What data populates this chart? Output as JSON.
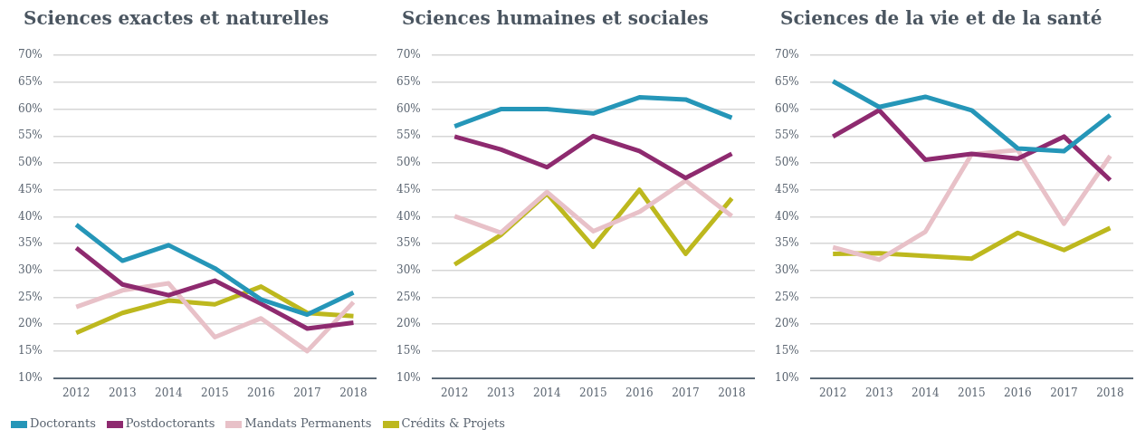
{
  "chart_data": [
    {
      "type": "line",
      "title": "Sciences exactes et naturelles",
      "categories": [
        "2012",
        "2013",
        "2014",
        "2015",
        "2016",
        "2017",
        "2018"
      ],
      "ylim": [
        10,
        70
      ],
      "yticks": [
        {
          "value": 10,
          "label": "10%"
        },
        {
          "value": 15,
          "label": "15%"
        },
        {
          "value": 20,
          "label": "20%"
        },
        {
          "value": 25,
          "label": "25%"
        },
        {
          "value": 30,
          "label": "30%"
        },
        {
          "value": 35,
          "label": "35%"
        },
        {
          "value": 40,
          "label": "40%"
        },
        {
          "value": 45,
          "label": "45%"
        },
        {
          "value": 50,
          "label": "50%"
        },
        {
          "value": 55,
          "label": "55%"
        },
        {
          "value": 60,
          "label": "60%"
        },
        {
          "value": 65,
          "label": "65%"
        },
        {
          "value": 70,
          "label": "70%"
        }
      ],
      "grid": "y",
      "legend": "bottom",
      "marker": "none",
      "series": [
        {
          "name": "Doctorants",
          "color": "#2596b8",
          "values": [
            38.5,
            31.8,
            34.7,
            30.4,
            24.6,
            21.8,
            25.9
          ]
        },
        {
          "name": "Postdoctorants",
          "color": "#8e2a6f",
          "values": [
            34.2,
            27.4,
            25.4,
            28.1,
            23.8,
            19.2,
            20.3
          ]
        },
        {
          "name": "Mandats Permanents",
          "color": "#e8c1c8",
          "values": [
            23.2,
            26.3,
            27.6,
            17.6,
            21.1,
            15.0,
            24.1
          ]
        },
        {
          "name": "Crédits & Projets",
          "color": "#bdb81e",
          "values": [
            18.4,
            22.1,
            24.4,
            23.7,
            27.0,
            22.1,
            21.5
          ]
        }
      ]
    },
    {
      "type": "line",
      "title": "Sciences humaines et sociales",
      "categories": [
        "2012",
        "2013",
        "2014",
        "2015",
        "2016",
        "2017",
        "2018"
      ],
      "ylim": [
        10,
        70
      ],
      "yticks": [
        {
          "value": 10,
          "label": "10%"
        },
        {
          "value": 15,
          "label": "15%"
        },
        {
          "value": 20,
          "label": "20%"
        },
        {
          "value": 25,
          "label": "25%"
        },
        {
          "value": 30,
          "label": "30%"
        },
        {
          "value": 35,
          "label": "35%"
        },
        {
          "value": 40,
          "label": "40%"
        },
        {
          "value": 45,
          "label": "45%"
        },
        {
          "value": 50,
          "label": "50%"
        },
        {
          "value": 55,
          "label": "55%"
        },
        {
          "value": 60,
          "label": "60%"
        },
        {
          "value": 65,
          "label": "65%"
        },
        {
          "value": 70,
          "label": "70%"
        }
      ],
      "grid": "y",
      "marker": "none",
      "series": [
        {
          "color": "#2596b8",
          "values": [
            56.8,
            60.0,
            60.0,
            59.2,
            62.2,
            61.8,
            58.4
          ]
        },
        {
          "color": "#8e2a6f",
          "values": [
            54.9,
            52.5,
            49.2,
            55.0,
            52.2,
            47.2,
            51.7
          ]
        },
        {
          "color": "#e8c1c8",
          "values": [
            40.1,
            37.0,
            44.6,
            37.3,
            40.9,
            46.7,
            40.1
          ]
        },
        {
          "color": "#bdb81e",
          "values": [
            31.1,
            36.6,
            44.3,
            34.4,
            45.0,
            33.1,
            43.4
          ]
        }
      ]
    },
    {
      "type": "line",
      "title": "Sciences de la vie et de la santé",
      "categories": [
        "2012",
        "2013",
        "2014",
        "2015",
        "2016",
        "2017",
        "2018"
      ],
      "ylim": [
        10,
        70
      ],
      "yticks": [
        {
          "value": 10,
          "label": "10%"
        },
        {
          "value": 15,
          "label": "15%"
        },
        {
          "value": 20,
          "label": "20%"
        },
        {
          "value": 25,
          "label": "25%"
        },
        {
          "value": 30,
          "label": "30%"
        },
        {
          "value": 35,
          "label": "35%"
        },
        {
          "value": 40,
          "label": "40%"
        },
        {
          "value": 45,
          "label": "45%"
        },
        {
          "value": 50,
          "label": "50%"
        },
        {
          "value": 55,
          "label": "55%"
        },
        {
          "value": 60,
          "label": "60%"
        },
        {
          "value": 65,
          "label": "65%"
        },
        {
          "value": 70,
          "label": "70%"
        }
      ],
      "grid": "y",
      "marker": "none",
      "series": [
        {
          "color": "#2596b8",
          "values": [
            65.2,
            60.4,
            62.3,
            59.8,
            52.7,
            52.2,
            58.9
          ]
        },
        {
          "color": "#8e2a6f",
          "values": [
            54.9,
            59.8,
            50.6,
            51.7,
            50.8,
            54.9,
            46.8
          ]
        },
        {
          "color": "#e8c1c8",
          "values": [
            34.3,
            32.0,
            37.2,
            51.6,
            52.4,
            38.7,
            51.3
          ]
        },
        {
          "color": "#bdb81e",
          "values": [
            33.1,
            33.2,
            32.7,
            32.2,
            37.0,
            33.8,
            37.9
          ]
        }
      ]
    }
  ]
}
